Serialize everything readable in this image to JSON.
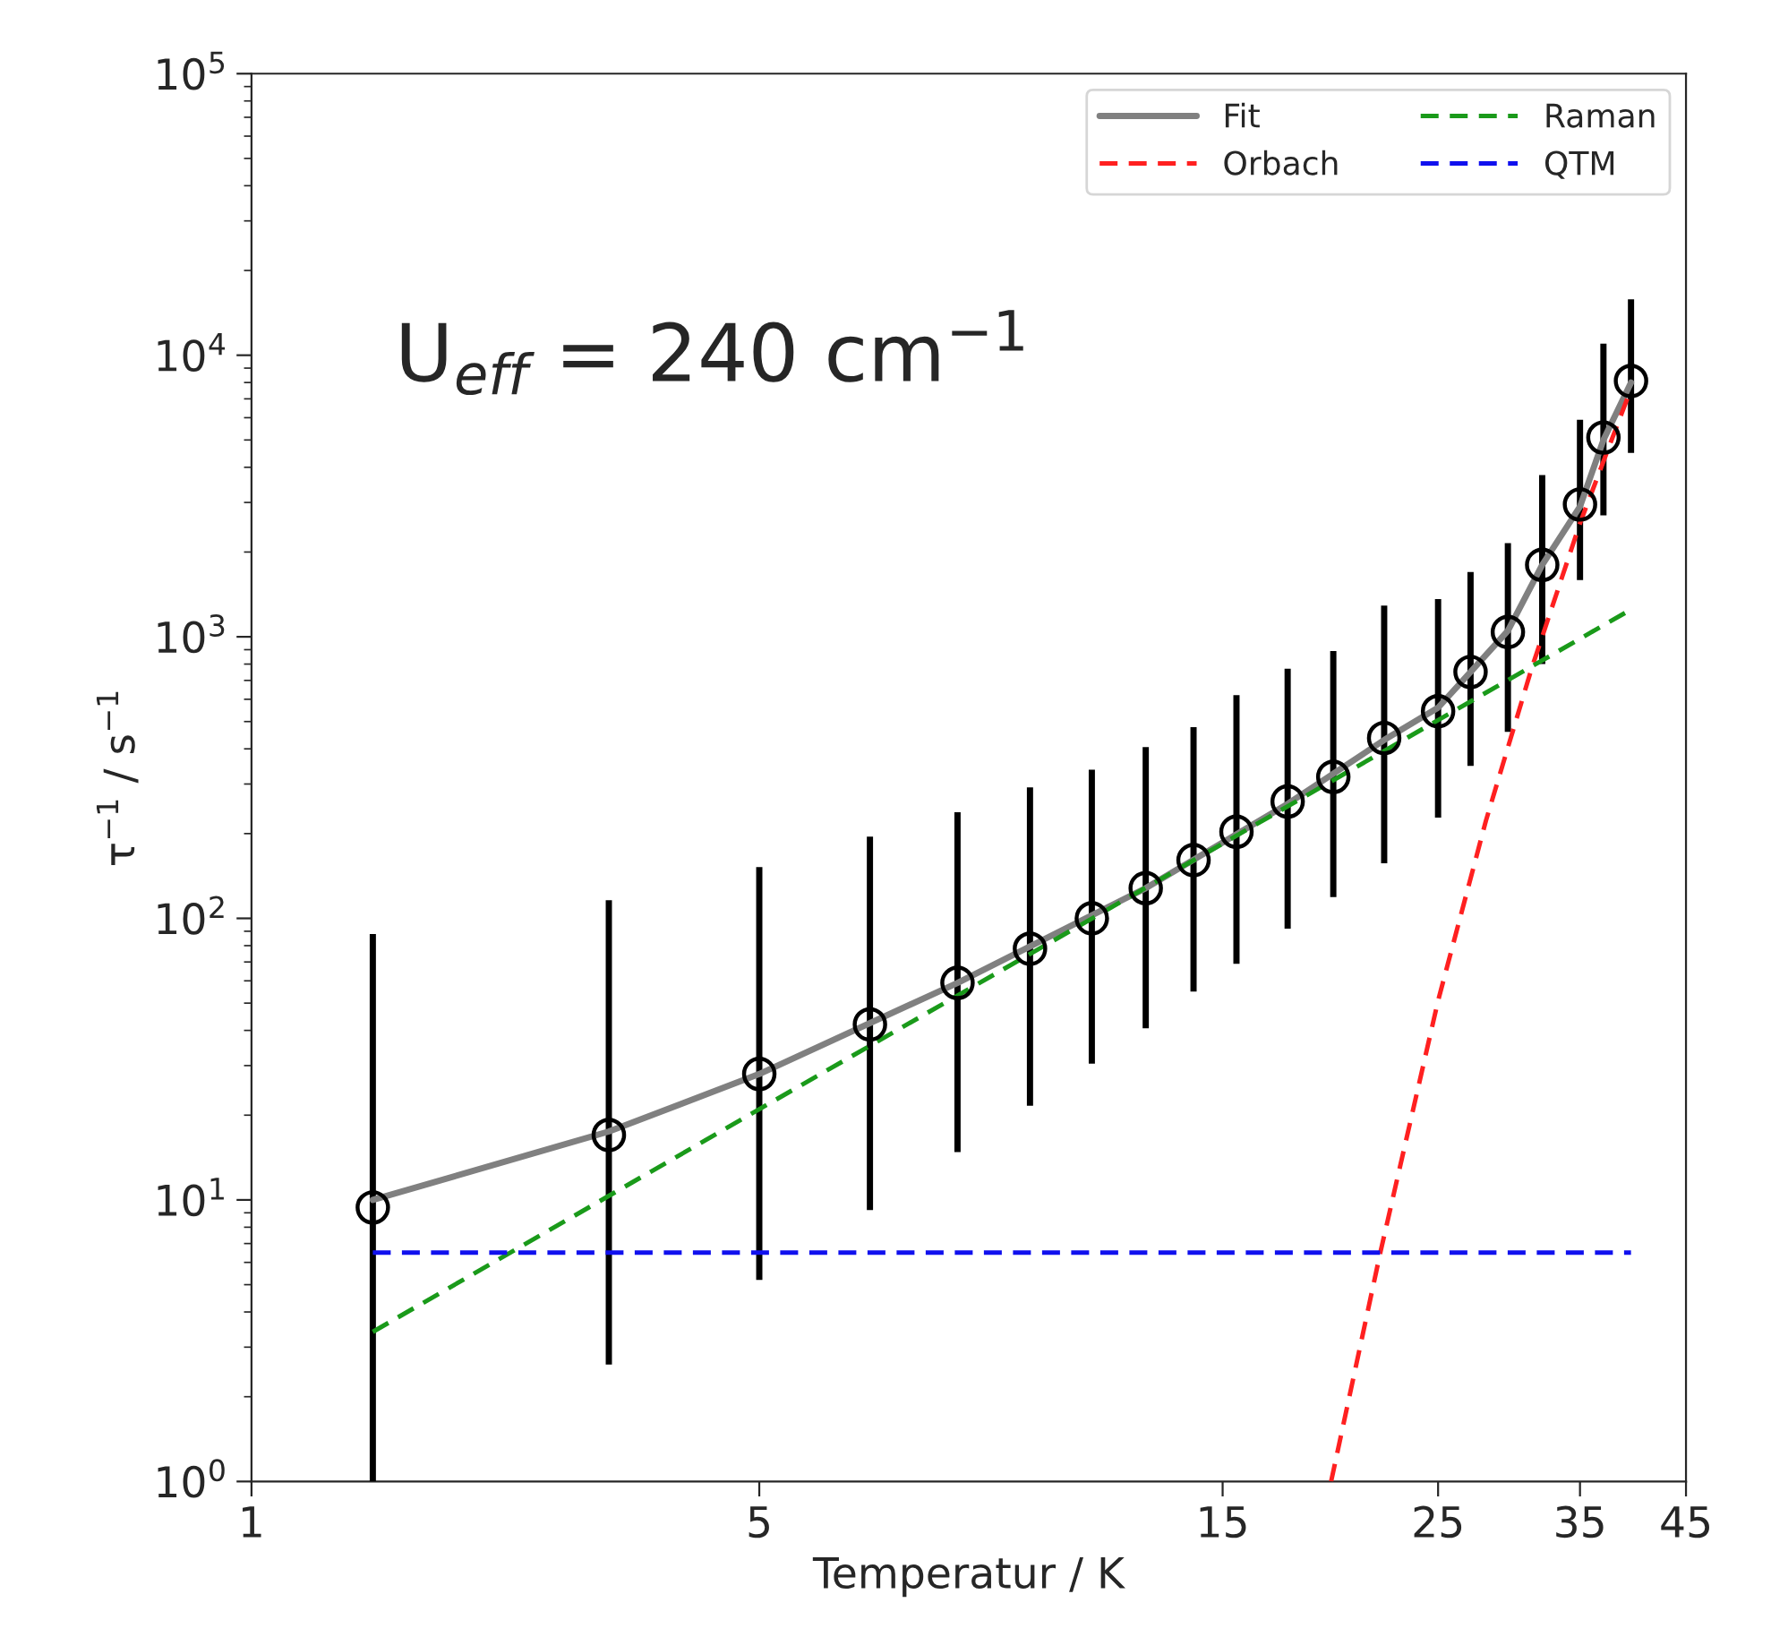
{
  "chart_data": {
    "type": "scatter",
    "xlabel": "Temperatur / K",
    "ylabel": "τ$^{−1}$ / s$^{−1}$",
    "log": "xy",
    "grid": false,
    "legend": "top right",
    "xlim": [
      1.5,
      45
    ],
    "xticks": [
      {
        "value": 1.5,
        "label": "1"
      },
      5,
      15,
      25,
      35,
      45
    ],
    "ylim": [
      1,
      100000
    ],
    "yticks": [
      {
        "value": 1,
        "label": "10$^{0}$"
      },
      {
        "value": 10,
        "label": "10$^{1}$"
      },
      {
        "value": 100,
        "label": "10$^{2}$"
      },
      {
        "value": 1000,
        "label": "10$^{3}$"
      },
      {
        "value": 10000,
        "label": "10$^{4}$"
      },
      {
        "value": 100000,
        "label": "10$^{5}$"
      }
    ],
    "annotations": [
      "U$_{eff}$ = 240 cm$^{−1}$"
    ],
    "series": [
      {
        "marker": "circle",
        "color": "#000000",
        "x": [
          2,
          3.5,
          5,
          6.5,
          8,
          9.5,
          11,
          12.5,
          14,
          15.5,
          17.5,
          19.5,
          22,
          25,
          27,
          29.5,
          32,
          35,
          37,
          39.5
        ],
        "values": [
          9.4,
          17,
          28,
          42,
          59,
          78,
          100,
          128,
          161,
          203,
          260,
          318,
          437,
          544,
          750,
          1040,
          1800,
          2950,
          5100,
          8100
        ],
        "errors": [
          [
            1,
            88
          ],
          [
            2.6,
            116
          ],
          [
            5.2,
            152
          ],
          [
            9.2,
            195
          ],
          [
            14.8,
            238
          ],
          [
            21.6,
            292
          ],
          [
            30.5,
            337
          ],
          [
            40.7,
            406
          ],
          [
            55,
            478
          ],
          [
            69,
            620
          ],
          [
            92,
            770
          ],
          [
            119,
            890
          ],
          [
            157,
            1290
          ],
          [
            228,
            1360
          ],
          [
            348,
            1700
          ],
          [
            460,
            2150
          ],
          [
            800,
            3750
          ],
          [
            1590,
            5900
          ],
          [
            2700,
            11000
          ],
          [
            4500,
            15800
          ]
        ]
      },
      {
        "type": "line",
        "name": "Fit",
        "color": "#808080",
        "line_style": "solid",
        "x": [
          2,
          3.5,
          5,
          8,
          12.5,
          17.5,
          22,
          25,
          27,
          29.5,
          32,
          35,
          37,
          39.5
        ],
        "values": [
          10,
          17.5,
          28,
          59,
          128,
          255,
          430,
          560,
          750,
          1050,
          1800,
          2900,
          5000,
          8000
        ]
      },
      {
        "type": "line",
        "name": "Orbach",
        "color": "#ff2020",
        "line_style": "dashed",
        "x": [
          19.4,
          21.8,
          25,
          28,
          31.2,
          35,
          39.5
        ],
        "values": [
          1,
          6.5,
          51,
          222,
          770,
          2530,
          7600
        ]
      },
      {
        "type": "line",
        "name": "Raman",
        "color": "#1a9a1a",
        "line_style": "dashed",
        "x": [
          2,
          5,
          39.5
        ],
        "values": [
          3.4,
          21,
          1250
        ]
      },
      {
        "type": "line",
        "name": "QTM",
        "color": "#1010ee",
        "line_style": "dashed",
        "x": [
          2,
          39.5
        ],
        "values": [
          6.5,
          6.5
        ]
      }
    ]
  }
}
